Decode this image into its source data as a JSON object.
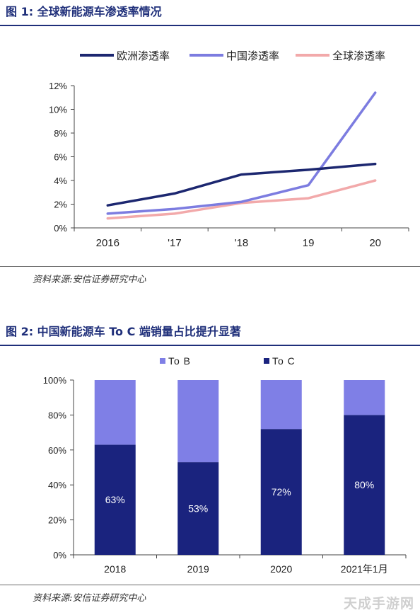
{
  "figures": [
    {
      "title": "图 1:  全球新能源车渗透率情况",
      "source": "资料来源:安信证券研究中心"
    },
    {
      "title": "图 2:  中国新能源车 To C 端销量占比提升显著",
      "source": "资料来源:安信证券研究中心"
    }
  ],
  "watermark": "天成手游网",
  "chart_data": [
    {
      "type": "line",
      "categories": [
        "2016",
        "'17",
        "'18",
        "19",
        "20"
      ],
      "ylim": [
        0,
        12
      ],
      "yticks": [
        "0%",
        "2%",
        "4%",
        "6%",
        "8%",
        "10%",
        "12%"
      ],
      "legend_position": "top",
      "series": [
        {
          "name": "欧洲渗透率",
          "color": "#1c2770",
          "values": [
            1.9,
            2.9,
            4.5,
            4.9,
            5.4
          ]
        },
        {
          "name": "中国渗透率",
          "color": "#7c7ce0",
          "values": [
            1.2,
            1.6,
            2.2,
            3.6,
            11.4
          ]
        },
        {
          "name": "全球渗透率",
          "color": "#f2a9aa",
          "values": [
            0.8,
            1.2,
            2.1,
            2.5,
            4.0
          ]
        }
      ]
    },
    {
      "type": "bar",
      "stacked": true,
      "categories": [
        "2018",
        "2019",
        "2020",
        "2021年1月"
      ],
      "ylim": [
        0,
        100
      ],
      "yticks": [
        "0%",
        "20%",
        "40%",
        "60%",
        "80%",
        "100%"
      ],
      "legend_position": "top",
      "series": [
        {
          "name": "To C",
          "color": "#1a237e",
          "values": [
            63,
            53,
            72,
            80
          ],
          "labels": [
            "63%",
            "53%",
            "72%",
            "80%"
          ]
        },
        {
          "name": "To B",
          "color": "#7f7fe6",
          "values": [
            37,
            47,
            28,
            20
          ]
        }
      ]
    }
  ]
}
